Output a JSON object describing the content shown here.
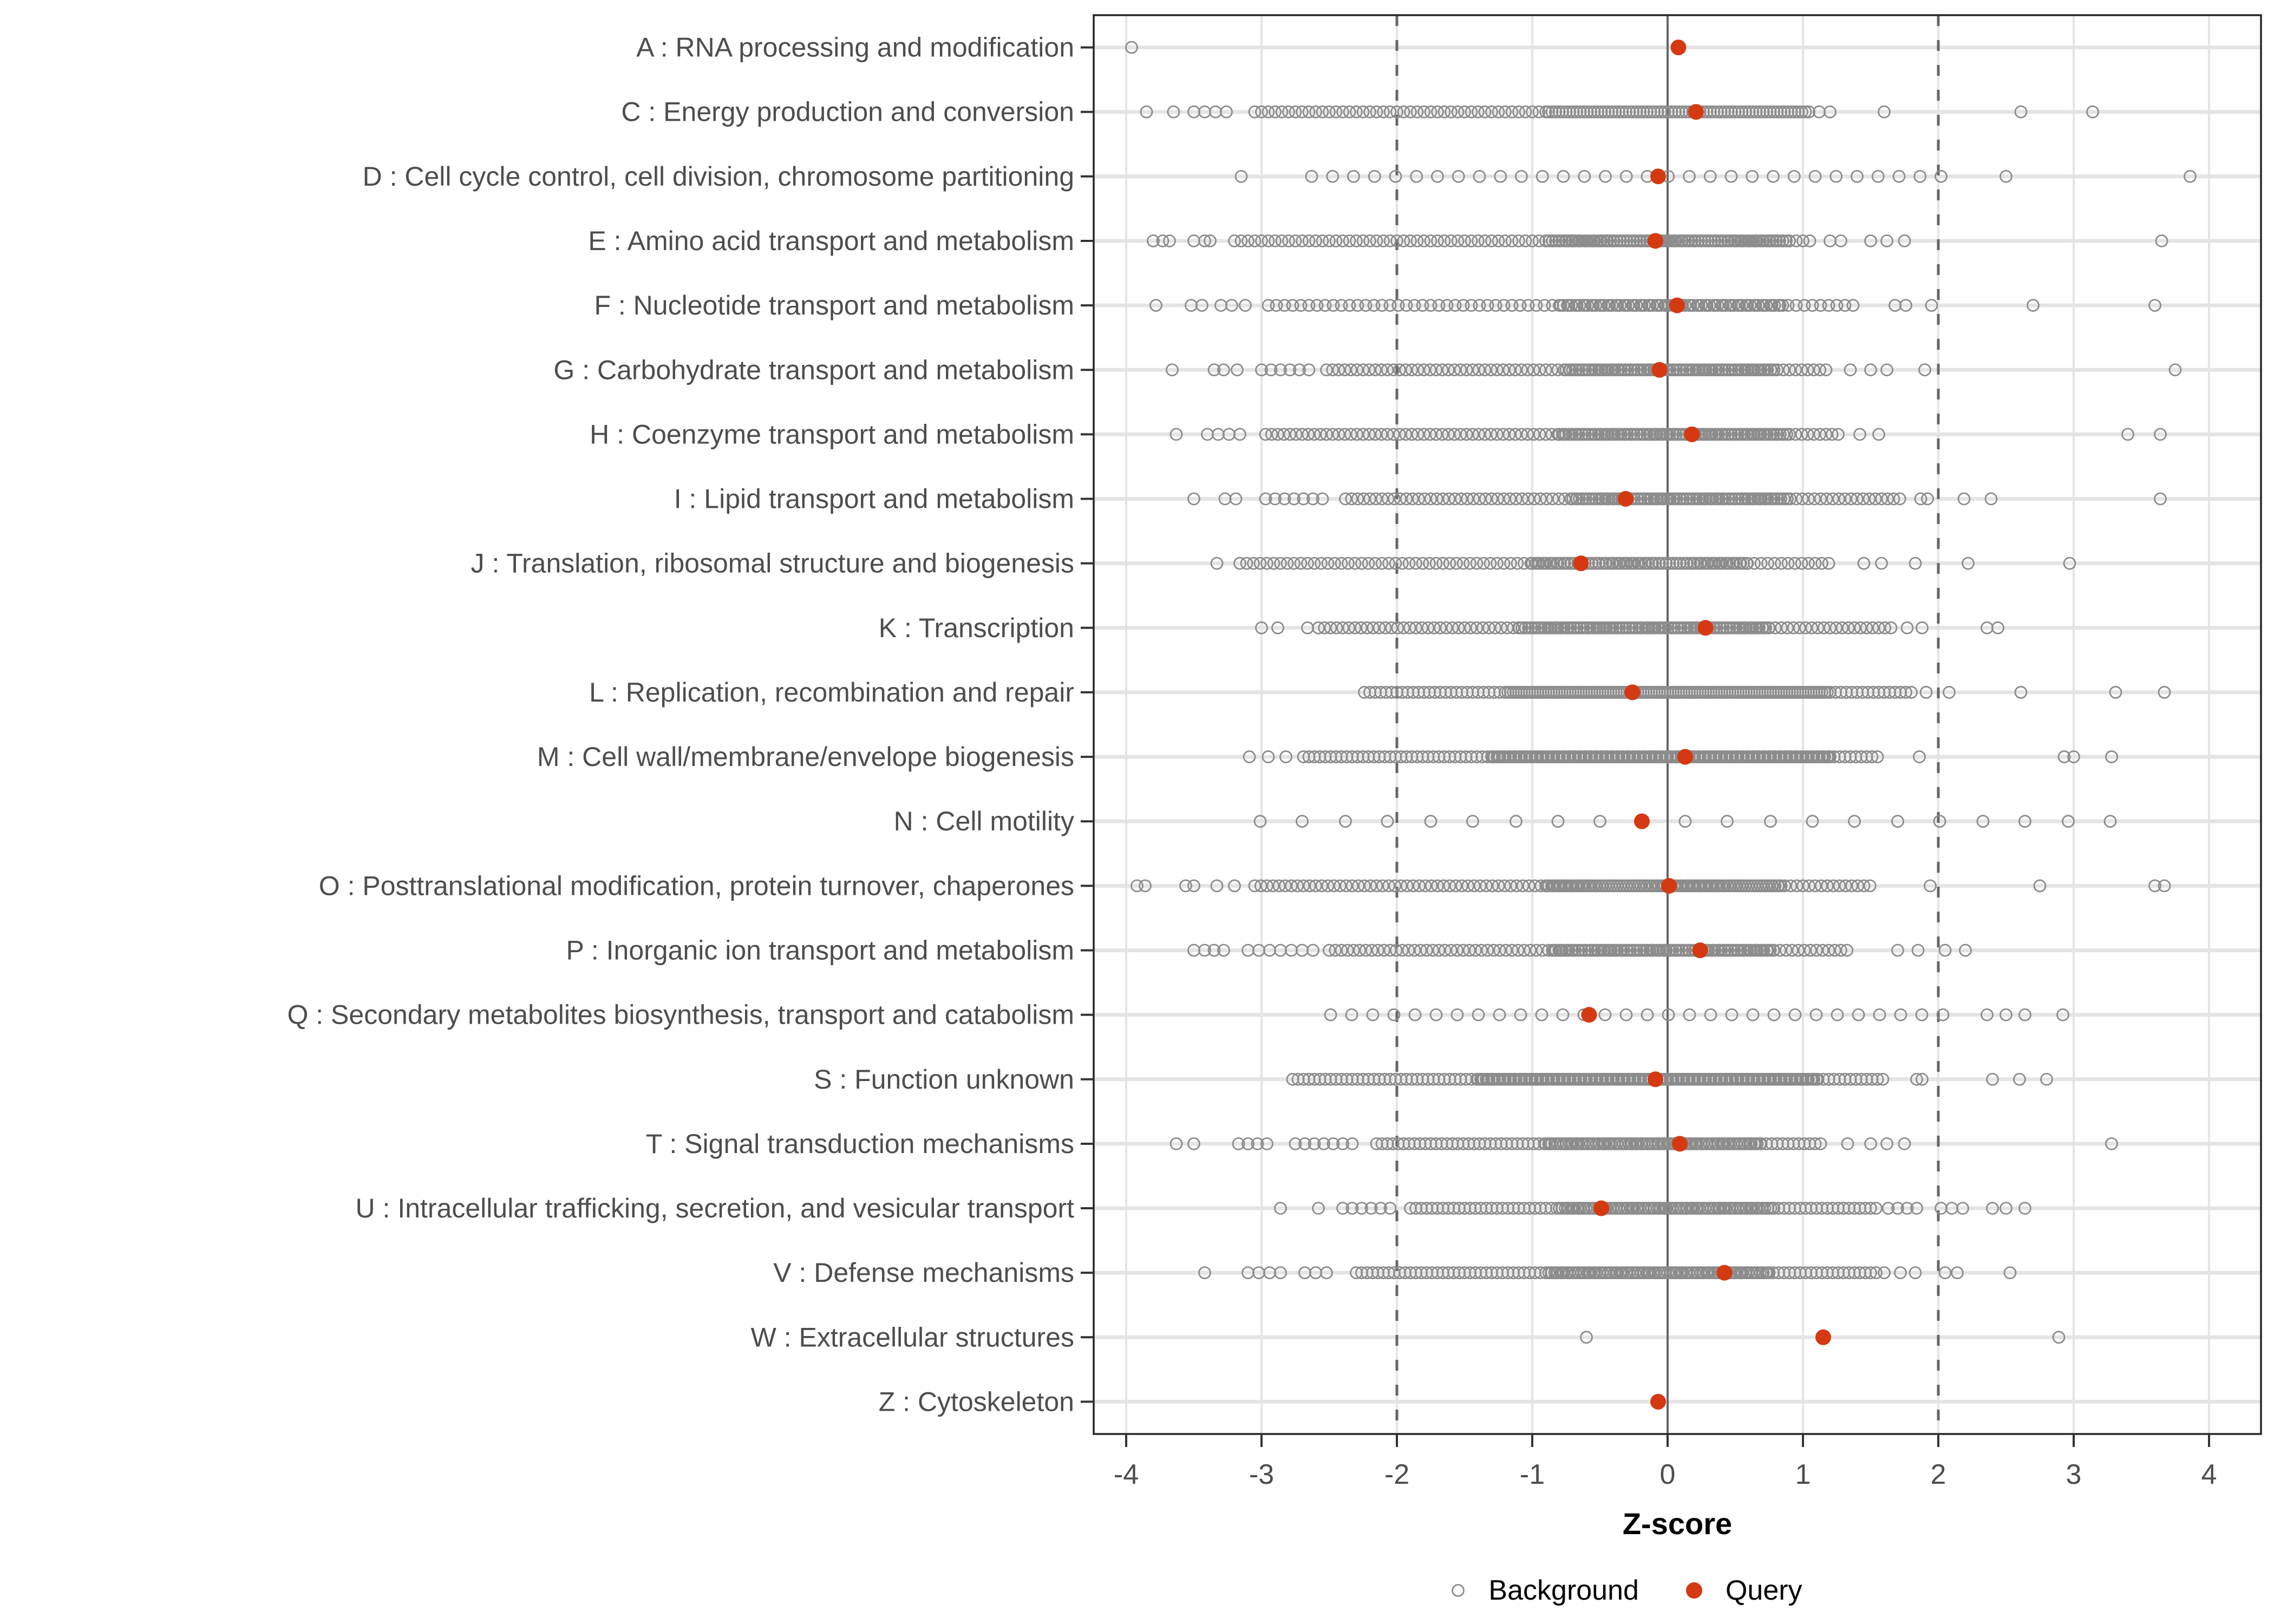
{
  "chart_data": {
    "type": "scatter",
    "subtype": "strip-dotplot",
    "title": "",
    "xlabel": "Z-score",
    "ylabel": "",
    "xlim": [
      -4.24,
      4.38
    ],
    "xticks": [
      -4,
      -3,
      -2,
      -1,
      0,
      1,
      2,
      3,
      4
    ],
    "grid": "on",
    "reference_lines": {
      "solid": [
        0
      ],
      "dashed": [
        -2,
        2
      ]
    },
    "legend_position": "bottom-center",
    "legend": [
      {
        "label": "Background",
        "marker": "open-circle",
        "color": "#8C8C8C"
      },
      {
        "label": "Query",
        "marker": "filled-circle",
        "color": "#D53911"
      }
    ],
    "colors": {
      "query": "#D53911",
      "background_stroke": "#8C8C8C",
      "gridline": "#E4E4E4",
      "reference_line": "#666666",
      "axis_text": "#4D4D4D",
      "panel_border": "#262626"
    },
    "categories": [
      {
        "key": "A",
        "label": "A : RNA processing and modification",
        "query": 0.08,
        "background": {
          "segments": [],
          "points": [
            -3.96
          ]
        }
      },
      {
        "key": "C",
        "label": "C : Energy production and conversion",
        "query": 0.21,
        "background": {
          "segments": [
            {
              "from": -3.5,
              "to": -3.2,
              "step": 0.08
            },
            {
              "from": -3.05,
              "to": -0.9,
              "step": 0.05
            },
            {
              "from": -0.88,
              "to": 1.05,
              "step": 0.026
            }
          ],
          "points": [
            -3.85,
            -3.65,
            1.12,
            1.2,
            1.6,
            2.61,
            3.14
          ]
        }
      },
      {
        "key": "D",
        "label": "D : Cell cycle control, cell division, chromosome partitioning",
        "query": -0.07,
        "background": {
          "segments": [
            {
              "from": -2.63,
              "to": 2.13,
              "step": 0.155
            }
          ],
          "points": [
            -3.15,
            2.5,
            3.86
          ]
        }
      },
      {
        "key": "E",
        "label": "E : Amino acid transport and metabolism",
        "query": -0.09,
        "background": {
          "segments": [
            {
              "from": -3.2,
              "to": 1.08,
              "step": 0.05
            },
            {
              "from": -0.9,
              "to": 0.9,
              "step": 0.024
            }
          ],
          "points": [
            -3.8,
            -3.73,
            -3.68,
            -3.5,
            -3.42,
            -3.38,
            1.2,
            1.28,
            1.5,
            1.62,
            1.75,
            3.65
          ]
        }
      },
      {
        "key": "F",
        "label": "F : Nucleotide transport and metabolism",
        "query": 0.07,
        "background": {
          "segments": [
            {
              "from": -2.95,
              "to": 1.4,
              "step": 0.06
            },
            {
              "from": -0.8,
              "to": 0.85,
              "step": 0.03
            }
          ],
          "points": [
            -3.78,
            -3.52,
            -3.44,
            -3.3,
            -3.22,
            -3.12,
            1.68,
            1.76,
            1.95,
            2.7,
            3.6
          ]
        }
      },
      {
        "key": "G",
        "label": "G : Carbohydrate transport and metabolism",
        "query": -0.06,
        "background": {
          "segments": [
            {
              "from": -3.0,
              "to": -2.6,
              "step": 0.07
            },
            {
              "from": -2.52,
              "to": 1.18,
              "step": 0.045
            },
            {
              "from": -0.75,
              "to": 0.8,
              "step": 0.024
            }
          ],
          "points": [
            -3.66,
            -3.35,
            -3.28,
            -3.18,
            1.35,
            1.5,
            1.62,
            1.9,
            3.75
          ]
        }
      },
      {
        "key": "H",
        "label": "H : Coenzyme transport and metabolism",
        "query": 0.18,
        "background": {
          "segments": [
            {
              "from": -3.4,
              "to": -3.1,
              "step": 0.08
            },
            {
              "from": -2.97,
              "to": 1.27,
              "step": 0.045
            },
            {
              "from": -0.8,
              "to": 0.9,
              "step": 0.024
            }
          ],
          "points": [
            -3.63,
            1.42,
            1.56,
            3.4,
            3.64
          ]
        }
      },
      {
        "key": "I",
        "label": "I : Lipid transport and metabolism",
        "query": -0.31,
        "background": {
          "segments": [
            {
              "from": -2.97,
              "to": -2.52,
              "step": 0.07
            },
            {
              "from": -2.38,
              "to": 1.72,
              "step": 0.045
            },
            {
              "from": -0.7,
              "to": 0.9,
              "step": 0.024
            }
          ],
          "points": [
            -3.5,
            -3.27,
            -3.19,
            1.87,
            1.92,
            2.19,
            2.39,
            3.64
          ]
        }
      },
      {
        "key": "J",
        "label": "J : Translation, ribosomal structure and biogenesis",
        "query": -0.64,
        "background": {
          "segments": [
            {
              "from": -3.16,
              "to": 1.2,
              "step": 0.05
            },
            {
              "from": -1.0,
              "to": 0.6,
              "step": 0.026
            }
          ],
          "points": [
            -3.33,
            1.45,
            1.58,
            1.83,
            2.22,
            2.97
          ]
        }
      },
      {
        "key": "K",
        "label": "K : Transcription",
        "query": 0.28,
        "background": {
          "segments": [
            {
              "from": -2.58,
              "to": 1.66,
              "step": 0.045
            },
            {
              "from": -1.1,
              "to": 0.75,
              "step": 0.024
            }
          ],
          "points": [
            -3.0,
            -2.88,
            -2.66,
            1.77,
            1.88,
            2.36,
            2.44
          ]
        }
      },
      {
        "key": "L",
        "label": "L : Replication, recombination and repair",
        "query": -0.26,
        "background": {
          "segments": [
            {
              "from": -2.24,
              "to": 1.83,
              "step": 0.04
            },
            {
              "from": -1.2,
              "to": 1.2,
              "step": 0.02
            }
          ],
          "points": [
            1.91,
            2.08,
            2.61,
            3.31,
            3.67
          ]
        }
      },
      {
        "key": "M",
        "label": "M : Cell wall/membrane/envelope biogenesis",
        "query": 0.13,
        "background": {
          "segments": [
            {
              "from": -2.69,
              "to": 1.55,
              "step": 0.04
            },
            {
              "from": -1.3,
              "to": 1.2,
              "step": 0.02
            }
          ],
          "points": [
            -3.09,
            -2.95,
            -2.82,
            1.86,
            2.93,
            3.0,
            3.28
          ]
        }
      },
      {
        "key": "N",
        "label": "N : Cell motility",
        "query": -0.19,
        "background": {
          "segments": [],
          "points": [
            -3.01,
            -2.7,
            -2.38,
            -2.07,
            -1.75,
            -1.44,
            -1.12,
            -0.81,
            -0.5,
            0.13,
            0.44,
            0.76,
            1.07,
            1.38,
            1.7,
            2.01,
            2.33,
            2.64,
            2.96,
            3.27
          ]
        }
      },
      {
        "key": "O",
        "label": "O : Posttranslational modification, protein turnover, chaperones",
        "query": 0.01,
        "background": {
          "segments": [
            {
              "from": -3.05,
              "to": 1.5,
              "step": 0.045
            },
            {
              "from": -0.9,
              "to": 0.85,
              "step": 0.022
            }
          ],
          "points": [
            -3.92,
            -3.86,
            -3.56,
            -3.5,
            -3.33,
            -3.2,
            1.94,
            2.75,
            3.6,
            3.67
          ]
        }
      },
      {
        "key": "P",
        "label": "P : Inorganic ion transport and metabolism",
        "query": 0.24,
        "background": {
          "segments": [
            {
              "from": -3.1,
              "to": -2.6,
              "step": 0.08
            },
            {
              "from": -2.5,
              "to": 1.35,
              "step": 0.045
            },
            {
              "from": -0.85,
              "to": 0.8,
              "step": 0.024
            }
          ],
          "points": [
            -3.5,
            -3.42,
            -3.35,
            -3.28,
            1.7,
            1.85,
            2.05,
            2.2
          ]
        }
      },
      {
        "key": "Q",
        "label": "Q : Secondary metabolites biosynthesis, transport and catabolism",
        "query": -0.58,
        "background": {
          "segments": [
            {
              "from": -2.49,
              "to": 2.1,
              "step": 0.156
            }
          ],
          "points": [
            2.36,
            2.5,
            2.64,
            2.92
          ]
        }
      },
      {
        "key": "S",
        "label": "S : Function unknown",
        "query": -0.09,
        "background": {
          "segments": [
            {
              "from": -2.77,
              "to": 1.6,
              "step": 0.04
            },
            {
              "from": -1.4,
              "to": 1.1,
              "step": 0.02
            }
          ],
          "points": [
            1.84,
            1.88,
            2.4,
            2.6,
            2.8
          ]
        }
      },
      {
        "key": "T",
        "label": "T : Signal transduction mechanisms",
        "query": 0.09,
        "background": {
          "segments": [
            {
              "from": -3.17,
              "to": -2.95,
              "step": 0.07
            },
            {
              "from": -2.75,
              "to": -2.33,
              "step": 0.07
            },
            {
              "from": -2.15,
              "to": 1.15,
              "step": 0.04
            },
            {
              "from": -0.9,
              "to": 0.7,
              "step": 0.022
            }
          ],
          "points": [
            -3.63,
            -3.5,
            1.33,
            1.5,
            1.62,
            1.75,
            3.28
          ]
        }
      },
      {
        "key": "U",
        "label": "U : Intracellular trafficking, secretion, and vesicular transport",
        "query": -0.49,
        "background": {
          "segments": [
            {
              "from": -2.4,
              "to": -2.0,
              "step": 0.07
            },
            {
              "from": -1.9,
              "to": 1.55,
              "step": 0.04
            },
            {
              "from": -0.8,
              "to": 0.8,
              "step": 0.022
            },
            {
              "from": 1.63,
              "to": 1.9,
              "step": 0.07
            },
            {
              "from": 2.02,
              "to": 2.25,
              "step": 0.08
            }
          ],
          "points": [
            -2.86,
            -2.58,
            2.4,
            2.5,
            2.64
          ]
        }
      },
      {
        "key": "V",
        "label": "V : Defense mechanisms",
        "query": 0.42,
        "background": {
          "segments": [
            {
              "from": -3.1,
              "to": -2.86,
              "step": 0.08
            },
            {
              "from": -2.68,
              "to": -2.45,
              "step": 0.08
            },
            {
              "from": -2.3,
              "to": 1.55,
              "step": 0.04
            },
            {
              "from": -0.9,
              "to": 0.75,
              "step": 0.022
            }
          ],
          "points": [
            -3.42,
            1.6,
            1.72,
            1.83,
            2.05,
            2.14,
            2.53
          ]
        }
      },
      {
        "key": "W",
        "label": "W : Extracellular structures",
        "query": 1.15,
        "background": {
          "segments": [],
          "points": [
            -0.6,
            2.89
          ]
        }
      },
      {
        "key": "Z",
        "label": "Z : Cytoskeleton",
        "query": -0.07,
        "background": {
          "segments": [],
          "points": []
        }
      }
    ]
  }
}
